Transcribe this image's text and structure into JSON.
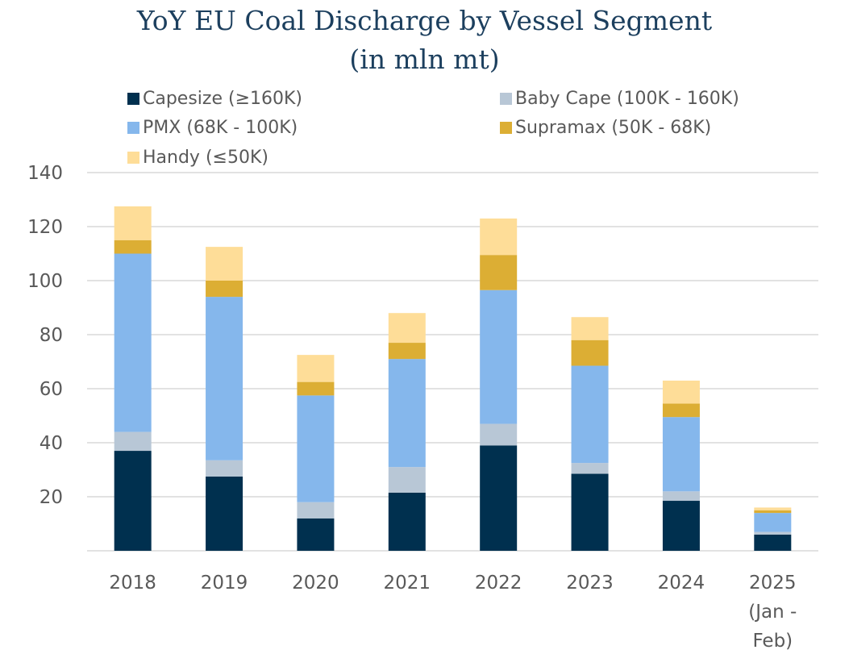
{
  "chart_data": {
    "type": "bar",
    "stacked": true,
    "title": "YoY EU Coal Discharge by Vessel Segment",
    "subtitle": "(in mln mt)",
    "categories": [
      "2018",
      "2019",
      "2020",
      "2021",
      "2022",
      "2023",
      "2024",
      "2025 (Jan - Feb)"
    ],
    "category_lines": [
      [
        "2018"
      ],
      [
        "2019"
      ],
      [
        "2020"
      ],
      [
        "2021"
      ],
      [
        "2022"
      ],
      [
        "2023"
      ],
      [
        "2024"
      ],
      [
        "2025",
        "(Jan -",
        "Feb)"
      ]
    ],
    "series": [
      {
        "name": "Capesize (≥160K)",
        "color": "#00304f",
        "values": [
          37,
          27.5,
          12,
          21.5,
          39,
          28.5,
          18.5,
          6
        ]
      },
      {
        "name": "Baby Cape (100K - 160K)",
        "color": "#b8c7d6",
        "values": [
          7,
          6,
          6,
          9.5,
          8,
          4,
          3.5,
          1
        ]
      },
      {
        "name": "PMX (68K - 100K)",
        "color": "#85b7ec",
        "values": [
          66,
          60.5,
          39.5,
          40,
          49.5,
          36,
          27.5,
          7
        ]
      },
      {
        "name": "Supramax (50K - 68K)",
        "color": "#dcae34",
        "values": [
          5,
          6,
          5,
          6,
          13,
          9.5,
          5,
          1
        ]
      },
      {
        "name": "Handy (≤50K)",
        "color": "#fedd98",
        "values": [
          12.5,
          12.5,
          10,
          11,
          13.5,
          8.5,
          8.5,
          1
        ]
      }
    ],
    "ylim": [
      0,
      140
    ],
    "yticks": [
      20,
      40,
      60,
      80,
      100,
      120,
      140
    ],
    "grid": true,
    "legend_position": "top",
    "xlabel": "",
    "ylabel": ""
  }
}
